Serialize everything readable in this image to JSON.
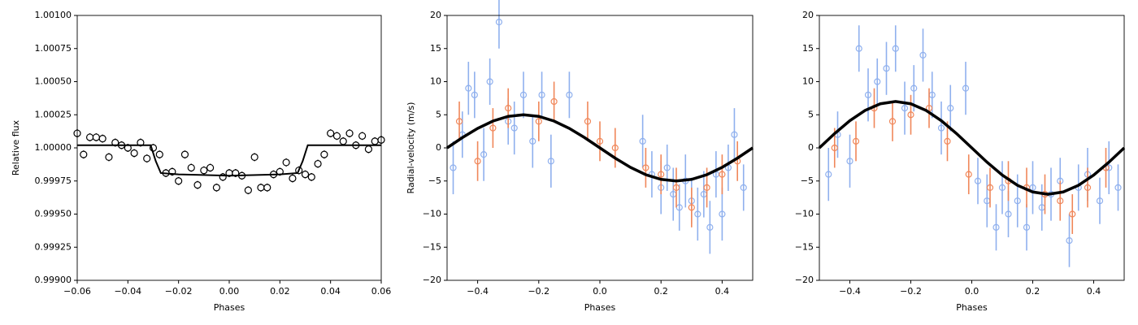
{
  "chart_data": [
    {
      "type": "scatter",
      "xlabel": "Phases",
      "ylabel": "Relative flux",
      "xlim": [
        -0.06,
        0.06
      ],
      "xticks": [
        {
          "value": -0.06,
          "label": "−0.06"
        },
        {
          "value": -0.04,
          "label": "−0.04"
        },
        {
          "value": -0.02,
          "label": "−0.02"
        },
        {
          "value": 0,
          "label": "0.00"
        },
        0.02,
        0.04,
        0.06
      ],
      "ylim": [
        0.999,
        1.001
      ],
      "yticks": [
        {
          "value": 0.999,
          "label": "0.99900"
        },
        {
          "value": 0.99925,
          "label": "0.99925"
        },
        {
          "value": 0.9995,
          "label": "0.99950"
        },
        {
          "value": 0.99975,
          "label": "0.99975"
        },
        {
          "value": 1.0,
          "label": "1.00000"
        },
        {
          "value": 1.00025,
          "label": "1.00025"
        },
        {
          "value": 1.0005,
          "label": "1.00050"
        },
        {
          "value": 1.00075,
          "label": "1.00075"
        },
        {
          "value": 1.001,
          "label": "1.00100"
        }
      ],
      "series": [
        {
          "color": "#000000",
          "fill": "#ffffff",
          "marker": 4,
          "x": [
            -0.06,
            -0.0575,
            -0.055,
            -0.0525,
            -0.05,
            -0.0475,
            -0.045,
            -0.0425,
            -0.04,
            -0.0375,
            -0.035,
            -0.0325,
            -0.03,
            -0.0275,
            -0.025,
            -0.0225,
            -0.02,
            -0.0175,
            -0.015,
            -0.0125,
            -0.01,
            -0.0075,
            -0.005,
            -0.0025,
            0,
            0.0025,
            0.005,
            0.0075,
            0.01,
            0.0125,
            0.015,
            0.0175,
            0.02,
            0.0225,
            0.025,
            0.0275,
            0.03,
            0.0325,
            0.035,
            0.0375,
            0.04,
            0.0425,
            0.045,
            0.0475,
            0.05,
            0.0525,
            0.055,
            0.0575,
            0.06
          ],
          "values": [
            1.00011,
            0.99995,
            1.00008,
            1.00008,
            1.00007,
            0.99993,
            1.00004,
            1.00002,
            1.0,
            0.99996,
            1.00004,
            0.99992,
            1.0,
            0.99995,
            0.99981,
            0.99982,
            0.99975,
            0.99995,
            0.99985,
            0.99972,
            0.99983,
            0.99985,
            0.9997,
            0.99978,
            0.99981,
            0.99981,
            0.99979,
            0.99968,
            0.99993,
            0.9997,
            0.9997,
            0.9998,
            0.99982,
            0.99989,
            0.99977,
            0.99983,
            0.9998,
            0.99978,
            0.99988,
            0.99995,
            1.00011,
            1.00009,
            1.00005,
            1.00011,
            1.00002,
            1.00009,
            0.99999,
            1.00005,
            1.00006
          ],
          "errors": [
            3e-05,
            3e-05,
            3e-05,
            3e-05,
            3e-05,
            3e-05,
            3e-05,
            3e-05,
            3e-05,
            3e-05,
            3e-05,
            3e-05,
            3e-05,
            3e-05,
            3e-05,
            3e-05,
            3e-05,
            3e-05,
            3e-05,
            3e-05,
            3e-05,
            3e-05,
            3e-05,
            3e-05,
            3e-05,
            3e-05,
            3e-05,
            3e-05,
            3e-05,
            3e-05,
            3e-05,
            3e-05,
            3e-05,
            3e-05,
            3e-05,
            3e-05,
            3e-05,
            3e-05,
            3e-05,
            3e-05,
            3e-05,
            3e-05,
            3e-05,
            3e-05,
            3e-05,
            3e-05,
            3e-05,
            3e-05,
            3e-05
          ]
        },
        {
          "color": "#000000",
          "line": 2,
          "x": [
            -0.06,
            -0.031,
            -0.029,
            -0.027,
            -0.02,
            0,
            0.02,
            0.027,
            0.029,
            0.031,
            0.06
          ],
          "values": [
            1.00002,
            1.00002,
            0.9999,
            0.99981,
            0.9998,
            0.99979,
            0.9998,
            0.99981,
            0.9999,
            1.00002,
            1.00002
          ]
        }
      ]
    },
    {
      "type": "scatter",
      "xlabel": "Phases",
      "ylabel": "Radial-velocity (m/s)",
      "xlim": [
        -0.5,
        0.5
      ],
      "xticks": [
        {
          "value": -0.4,
          "label": "−0.4"
        },
        {
          "value": -0.2,
          "label": "−0.2"
        },
        {
          "value": 0,
          "label": "0.0"
        },
        0.2,
        0.4
      ],
      "ylim": [
        -20,
        20
      ],
      "yticks": [
        {
          "value": -20,
          "label": "−20"
        },
        {
          "value": -15,
          "label": "−15"
        },
        {
          "value": -10,
          "label": "−10"
        },
        {
          "value": -5,
          "label": "−5"
        },
        0,
        5,
        10,
        15,
        20
      ],
      "series": [
        {
          "color": "#8fb0ee",
          "fill": "none",
          "marker": 3.5,
          "x": [
            -0.48,
            -0.45,
            -0.43,
            -0.41,
            -0.38,
            -0.36,
            -0.33,
            -0.3,
            -0.28,
            -0.25,
            -0.22,
            -0.19,
            -0.16,
            -0.1,
            0.14,
            0.17,
            0.2,
            0.22,
            0.24,
            0.26,
            0.28,
            0.3,
            0.32,
            0.34,
            0.36,
            0.38,
            0.4,
            0.42,
            0.44,
            0.47
          ],
          "values": [
            -3,
            2,
            9,
            8,
            -1,
            10,
            19,
            4,
            3,
            8,
            1,
            8,
            -2,
            8,
            1,
            -4,
            -6,
            -3,
            -7,
            -9,
            -5,
            -8,
            -10,
            -7,
            -12,
            -4,
            -10,
            -3,
            2,
            -6
          ],
          "errors": [
            4,
            3.5,
            4,
            3.5,
            4,
            3.5,
            4,
            3.5,
            4,
            3.5,
            4,
            3.5,
            4,
            3.5,
            4,
            3.5,
            4,
            3.5,
            4,
            3.5,
            4,
            3.5,
            4,
            3.5,
            4,
            3.5,
            4,
            3.5,
            4,
            3.5
          ]
        },
        {
          "color": "#f0875a",
          "fill": "none",
          "marker": 3.5,
          "x": [
            -0.46,
            -0.4,
            -0.35,
            -0.3,
            -0.2,
            -0.15,
            -0.04,
            0,
            0.05,
            0.15,
            0.2,
            0.25,
            0.3,
            0.35,
            0.4,
            0.45
          ],
          "values": [
            4,
            -2,
            3,
            6,
            4,
            7,
            4,
            1,
            0,
            -3,
            -4,
            -6,
            -9,
            -6,
            -4,
            -2
          ],
          "errors": [
            3,
            3,
            3,
            3,
            3,
            3,
            3,
            3,
            3,
            3,
            3,
            3,
            3,
            3,
            3,
            3
          ]
        },
        {
          "color": "#000000",
          "line": 3.5,
          "x": [
            -0.5,
            -0.45,
            -0.4,
            -0.35,
            -0.3,
            -0.25,
            -0.2,
            -0.15,
            -0.1,
            -0.05,
            0,
            0.05,
            0.1,
            0.15,
            0.2,
            0.25,
            0.3,
            0.35,
            0.4,
            0.45,
            0.5
          ],
          "values": [
            0,
            1.55,
            2.94,
            4.05,
            4.76,
            5,
            4.76,
            4.05,
            2.94,
            1.55,
            0,
            -1.55,
            -2.94,
            -4.05,
            -4.76,
            -5,
            -4.76,
            -4.05,
            -2.94,
            -1.55,
            0
          ]
        }
      ]
    },
    {
      "type": "scatter",
      "xlabel": "Phases",
      "xlim": [
        -0.5,
        0.5
      ],
      "xticks": [
        {
          "value": -0.4,
          "label": "−0.4"
        },
        {
          "value": -0.2,
          "label": "−0.2"
        },
        {
          "value": 0,
          "label": "0.0"
        },
        0.2,
        0.4
      ],
      "ylim": [
        -20,
        20
      ],
      "yticks": [
        {
          "value": -20,
          "label": "−20"
        },
        {
          "value": -15,
          "label": "−15"
        },
        {
          "value": -10,
          "label": "−10"
        },
        {
          "value": -5,
          "label": "−5"
        },
        0,
        5,
        10,
        15,
        20
      ],
      "series": [
        {
          "color": "#8fb0ee",
          "fill": "none",
          "marker": 3.5,
          "x": [
            -0.47,
            -0.44,
            -0.4,
            -0.37,
            -0.34,
            -0.31,
            -0.28,
            -0.25,
            -0.22,
            -0.19,
            -0.16,
            -0.13,
            -0.1,
            -0.07,
            -0.02,
            0.02,
            0.05,
            0.08,
            0.1,
            0.12,
            0.15,
            0.18,
            0.2,
            0.23,
            0.26,
            0.29,
            0.32,
            0.35,
            0.38,
            0.42,
            0.45,
            0.48
          ],
          "values": [
            -4,
            2,
            -2,
            15,
            8,
            10,
            12,
            15,
            6,
            9,
            14,
            8,
            3,
            6,
            9,
            -5,
            -8,
            -12,
            -6,
            -10,
            -8,
            -12,
            -6,
            -9,
            -7,
            -5,
            -14,
            -6,
            -4,
            -8,
            -3,
            -6
          ],
          "errors": [
            4,
            3.5,
            4,
            3.5,
            4,
            3.5,
            4,
            3.5,
            4,
            3.5,
            4,
            3.5,
            4,
            3.5,
            4,
            3.5,
            4,
            3.5,
            4,
            3.5,
            4,
            3.5,
            4,
            3.5,
            4,
            3.5,
            4,
            3.5,
            4,
            3.5,
            4,
            3.5
          ]
        },
        {
          "color": "#f0875a",
          "fill": "none",
          "marker": 3.5,
          "x": [
            -0.45,
            -0.38,
            -0.32,
            -0.26,
            -0.2,
            -0.14,
            -0.08,
            -0.01,
            0.06,
            0.12,
            0.18,
            0.24,
            0.29,
            0.33,
            0.38,
            0.44
          ],
          "values": [
            0,
            1,
            6,
            4,
            5,
            6,
            1,
            -4,
            -6,
            -5,
            -6,
            -7,
            -8,
            -10,
            -6,
            -3
          ],
          "errors": [
            3,
            3,
            3,
            3,
            3,
            3,
            3,
            3,
            3,
            3,
            3,
            3,
            3,
            3,
            3,
            3
          ]
        },
        {
          "color": "#000000",
          "line": 3.5,
          "x": [
            -0.5,
            -0.45,
            -0.4,
            -0.35,
            -0.3,
            -0.25,
            -0.2,
            -0.15,
            -0.1,
            -0.05,
            0,
            0.05,
            0.1,
            0.15,
            0.2,
            0.25,
            0.3,
            0.35,
            0.4,
            0.45,
            0.5
          ],
          "values": [
            0,
            2.16,
            4.11,
            5.66,
            6.66,
            7,
            6.66,
            5.66,
            4.11,
            2.16,
            0,
            -2.16,
            -4.11,
            -5.66,
            -6.66,
            -7,
            -6.66,
            -5.66,
            -4.11,
            -2.16,
            0
          ]
        }
      ]
    }
  ]
}
